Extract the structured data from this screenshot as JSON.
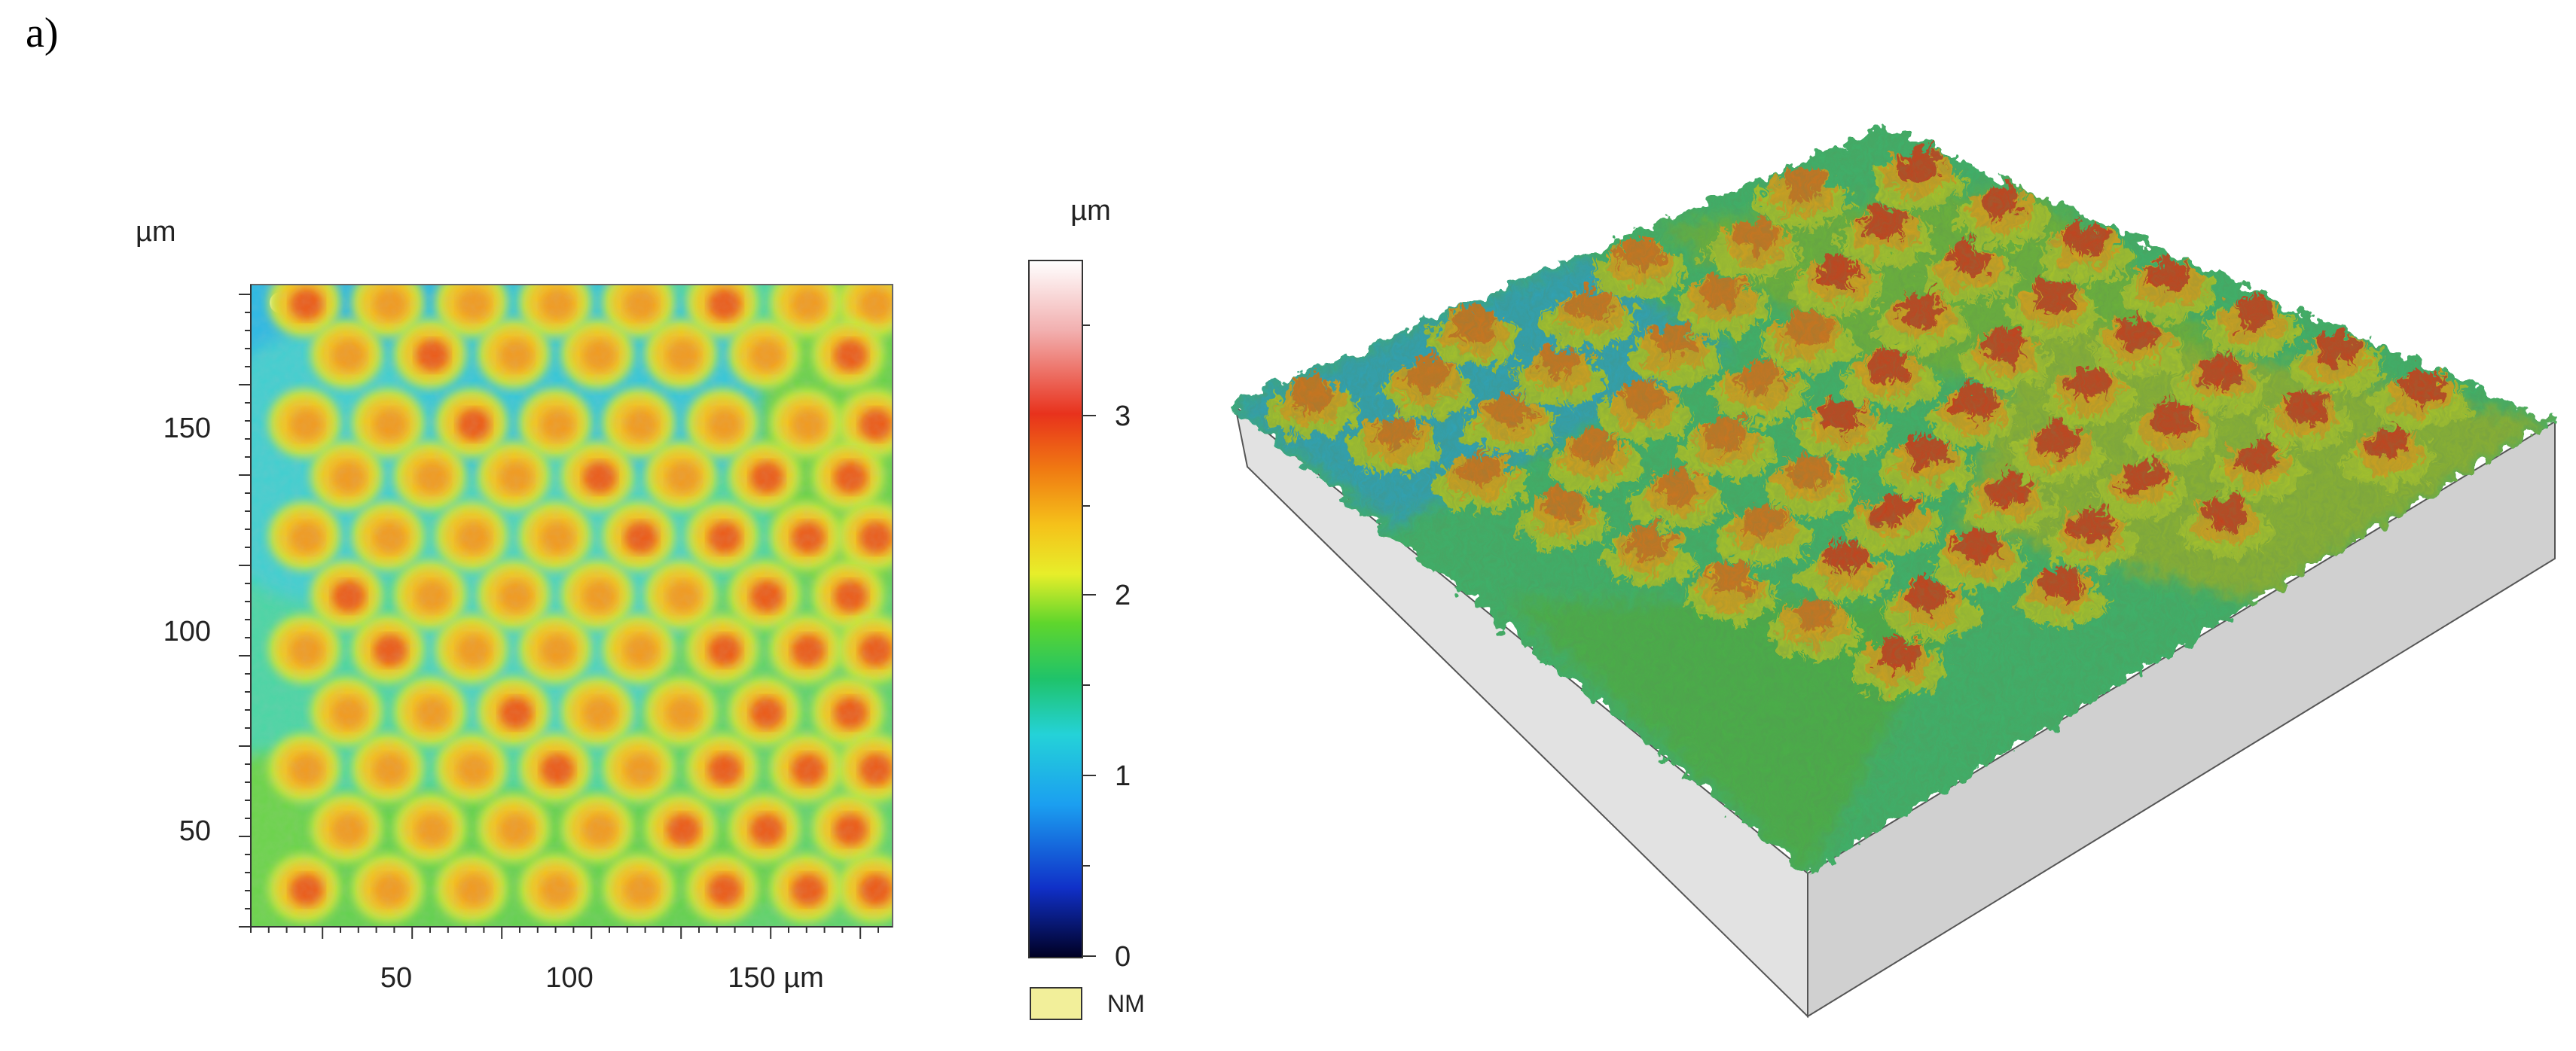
{
  "panel_label": "a)",
  "height_map": {
    "y_axis_unit": "µm",
    "y_ticks": [
      "150",
      "100",
      "50"
    ],
    "x_ticks": [
      "50",
      "100",
      "150 µm"
    ],
    "colorbar": {
      "unit": "µm",
      "ticks": [
        "3",
        "2",
        "1",
        "0"
      ],
      "colors": [
        "#ffffff",
        "#f2b0b0",
        "#e8321c",
        "#f07a12",
        "#f5c21a",
        "#e7ee2a",
        "#5fd62c",
        "#1fc36a",
        "#24d2d8",
        "#1b9ff0",
        "#1030c8",
        "#000022"
      ]
    },
    "nm_legend": {
      "label": "NM",
      "color": "#f2ef9a"
    }
  }
}
